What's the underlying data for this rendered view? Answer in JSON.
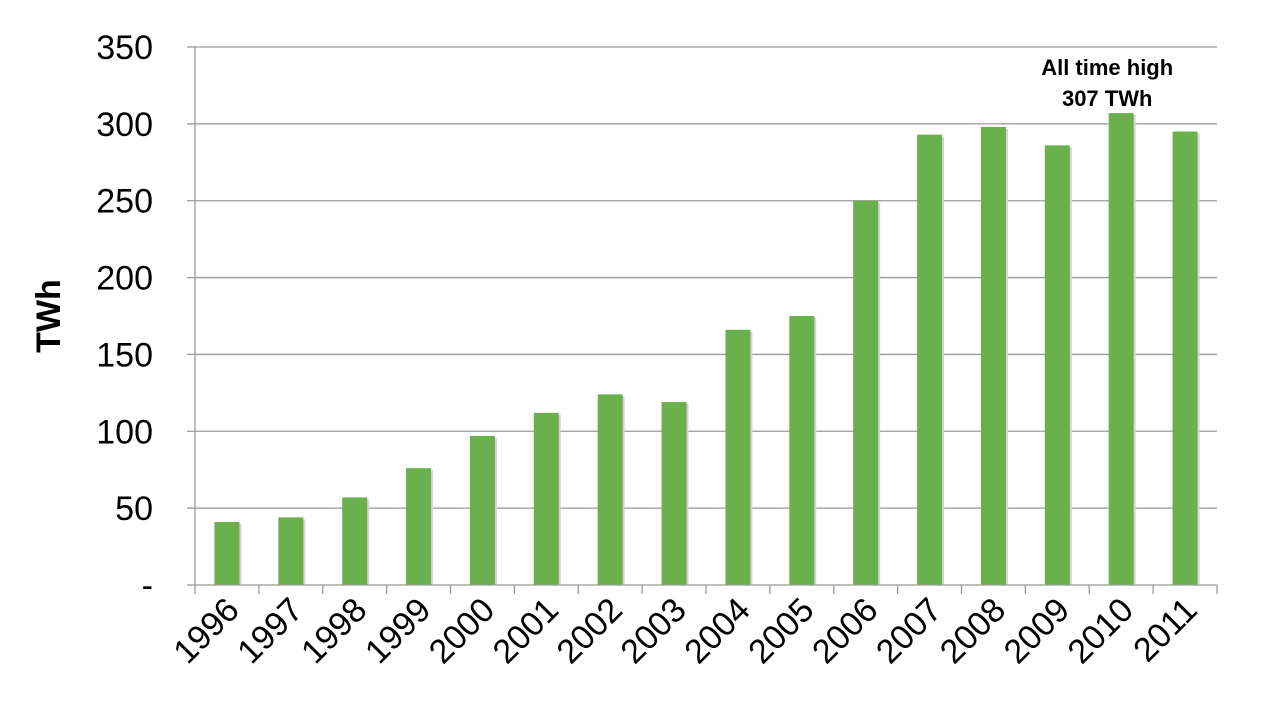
{
  "chart_data": {
    "type": "bar",
    "title": "",
    "xlabel": "",
    "ylabel": "TWh",
    "categories": [
      "1996",
      "1997",
      "1998",
      "1999",
      "2000",
      "2001",
      "2002",
      "2003",
      "2004",
      "2005",
      "2006",
      "2007",
      "2008",
      "2009",
      "2010",
      "2011"
    ],
    "values": [
      41,
      44,
      57,
      76,
      97,
      112,
      124,
      119,
      166,
      175,
      250,
      293,
      298,
      286,
      307,
      295
    ],
    "ylim": [
      0,
      350
    ],
    "yticks": [
      0,
      50,
      100,
      150,
      200,
      250,
      300,
      350
    ],
    "ytick_labels": [
      "-",
      "50",
      "100",
      "150",
      "200",
      "250",
      "300",
      "350"
    ],
    "grid": true,
    "bar_color": "#6ab04c",
    "annotation": {
      "category": "2010",
      "lines": [
        "All time high",
        "307 TWh"
      ]
    }
  }
}
